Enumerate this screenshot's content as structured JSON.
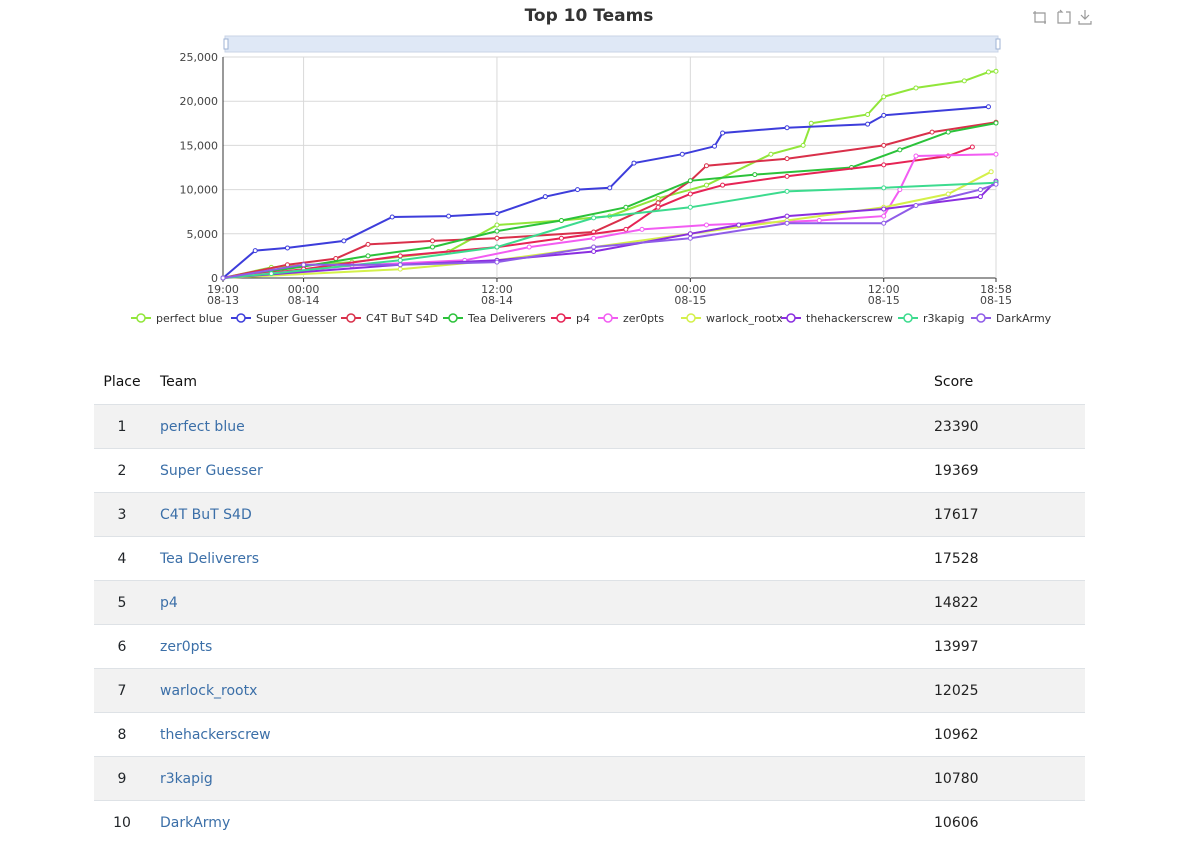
{
  "chart_data": {
    "type": "line",
    "title": "Top 10 Teams",
    "xlabel": "",
    "ylabel": "",
    "x_range": [
      "08-13 19:00",
      "08-15 18:58"
    ],
    "ylim": [
      0,
      25000
    ],
    "y_ticks": [
      "0",
      "5,000",
      "10,000",
      "15,000",
      "20,000",
      "25,000"
    ],
    "x_ticks": [
      {
        "at": "08-13 19:00",
        "time": "19:00",
        "date": "08-13"
      },
      {
        "at": "08-14 00:00",
        "time": "00:00",
        "date": "08-14"
      },
      {
        "at": "08-14 12:00",
        "time": "12:00",
        "date": "08-14"
      },
      {
        "at": "08-15 00:00",
        "time": "00:00",
        "date": "08-15"
      },
      {
        "at": "08-15 12:00",
        "time": "12:00",
        "date": "08-15"
      },
      {
        "at": "08-15 18:58",
        "time": "18:58",
        "date": "08-15"
      }
    ],
    "grid": true,
    "legend_position": "bottom",
    "series": [
      {
        "name": "perfect blue",
        "color": "#91e63a",
        "points": [
          [
            "08-13 19:00",
            0
          ],
          [
            "08-13 22:00",
            1200
          ],
          [
            "08-14 03:00",
            1800
          ],
          [
            "08-14 09:00",
            3000
          ],
          [
            "08-14 12:00",
            6000
          ],
          [
            "08-14 16:00",
            6500
          ],
          [
            "08-14 19:00",
            7000
          ],
          [
            "08-14 22:00",
            9000
          ],
          [
            "08-15 01:00",
            10500
          ],
          [
            "08-15 05:00",
            14000
          ],
          [
            "08-15 07:00",
            15000
          ],
          [
            "08-15 07:30",
            17500
          ],
          [
            "08-15 11:00",
            18500
          ],
          [
            "08-15 12:00",
            20500
          ],
          [
            "08-15 14:00",
            21500
          ],
          [
            "08-15 17:00",
            22300
          ],
          [
            "08-15 18:30",
            23300
          ],
          [
            "08-15 18:58",
            23390
          ]
        ]
      },
      {
        "name": "Super Guesser",
        "color": "#3d3ddb",
        "points": [
          [
            "08-13 19:00",
            0
          ],
          [
            "08-13 21:00",
            3100
          ],
          [
            "08-13 23:00",
            3400
          ],
          [
            "08-14 02:30",
            4200
          ],
          [
            "08-14 05:30",
            6900
          ],
          [
            "08-14 09:00",
            7000
          ],
          [
            "08-14 12:00",
            7300
          ],
          [
            "08-14 15:00",
            9200
          ],
          [
            "08-14 17:00",
            10000
          ],
          [
            "08-14 19:00",
            10200
          ],
          [
            "08-14 20:30",
            13000
          ],
          [
            "08-14 23:30",
            14000
          ],
          [
            "08-15 01:30",
            14900
          ],
          [
            "08-15 02:00",
            16400
          ],
          [
            "08-15 06:00",
            17000
          ],
          [
            "08-15 11:00",
            17400
          ],
          [
            "08-15 12:00",
            18400
          ],
          [
            "08-15 18:30",
            19369
          ]
        ]
      },
      {
        "name": "C4T BuT S4D",
        "color": "#d9304a",
        "points": [
          [
            "08-13 19:00",
            0
          ],
          [
            "08-13 23:00",
            1500
          ],
          [
            "08-14 02:00",
            2200
          ],
          [
            "08-14 04:00",
            3800
          ],
          [
            "08-14 08:00",
            4200
          ],
          [
            "08-14 12:00",
            4500
          ],
          [
            "08-14 18:00",
            5200
          ],
          [
            "08-14 22:00",
            8500
          ],
          [
            "08-15 00:00",
            11000
          ],
          [
            "08-15 01:00",
            12700
          ],
          [
            "08-15 06:00",
            13500
          ],
          [
            "08-15 12:00",
            15000
          ],
          [
            "08-15 15:00",
            16500
          ],
          [
            "08-15 18:58",
            17617
          ]
        ]
      },
      {
        "name": "Tea Deliverers",
        "color": "#2bc23a",
        "points": [
          [
            "08-13 19:00",
            0
          ],
          [
            "08-14 00:00",
            1300
          ],
          [
            "08-14 04:00",
            2500
          ],
          [
            "08-14 08:00",
            3500
          ],
          [
            "08-14 12:00",
            5300
          ],
          [
            "08-14 16:00",
            6500
          ],
          [
            "08-14 20:00",
            8000
          ],
          [
            "08-15 00:00",
            11000
          ],
          [
            "08-15 04:00",
            11700
          ],
          [
            "08-15 10:00",
            12500
          ],
          [
            "08-15 13:00",
            14500
          ],
          [
            "08-15 16:00",
            16500
          ],
          [
            "08-15 18:58",
            17528
          ]
        ]
      },
      {
        "name": "p4",
        "color": "#e62455",
        "points": [
          [
            "08-13 19:00",
            0
          ],
          [
            "08-14 00:00",
            1000
          ],
          [
            "08-14 06:00",
            2500
          ],
          [
            "08-14 12:00",
            3500
          ],
          [
            "08-14 16:00",
            4500
          ],
          [
            "08-14 20:00",
            5500
          ],
          [
            "08-14 22:00",
            8000
          ],
          [
            "08-15 00:00",
            9500
          ],
          [
            "08-15 02:00",
            10500
          ],
          [
            "08-15 06:00",
            11500
          ],
          [
            "08-15 12:00",
            12800
          ],
          [
            "08-15 16:00",
            13800
          ],
          [
            "08-15 17:30",
            14822
          ]
        ]
      },
      {
        "name": "zer0pts",
        "color": "#f25cf2",
        "points": [
          [
            "08-13 19:00",
            0
          ],
          [
            "08-14 03:00",
            1400
          ],
          [
            "08-14 10:00",
            2000
          ],
          [
            "08-14 14:00",
            3500
          ],
          [
            "08-14 18:00",
            4500
          ],
          [
            "08-14 21:00",
            5500
          ],
          [
            "08-15 01:00",
            6000
          ],
          [
            "08-15 08:00",
            6500
          ],
          [
            "08-15 12:00",
            7000
          ],
          [
            "08-15 13:00",
            10000
          ],
          [
            "08-15 14:00",
            13800
          ],
          [
            "08-15 18:58",
            13997
          ]
        ]
      },
      {
        "name": "warlock_rootx",
        "color": "#d4f04a",
        "points": [
          [
            "08-13 19:00",
            0
          ],
          [
            "08-14 06:00",
            1000
          ],
          [
            "08-14 12:00",
            2000
          ],
          [
            "08-14 18:00",
            3500
          ],
          [
            "08-15 00:00",
            5000
          ],
          [
            "08-15 06:00",
            6500
          ],
          [
            "08-15 12:00",
            8000
          ],
          [
            "08-15 16:00",
            9500
          ],
          [
            "08-15 18:40",
            12025
          ]
        ]
      },
      {
        "name": "thehackerscrew",
        "color": "#8a2ee0",
        "points": [
          [
            "08-13 19:00",
            0
          ],
          [
            "08-14 06:00",
            1500
          ],
          [
            "08-14 12:00",
            2000
          ],
          [
            "08-14 18:00",
            3000
          ],
          [
            "08-15 00:00",
            5000
          ],
          [
            "08-15 03:00",
            6000
          ],
          [
            "08-15 06:00",
            7000
          ],
          [
            "08-15 12:00",
            7800
          ],
          [
            "08-15 18:00",
            9200
          ],
          [
            "08-15 18:58",
            10962
          ]
        ]
      },
      {
        "name": "r3kapig",
        "color": "#3cdb8e",
        "points": [
          [
            "08-13 19:00",
            0
          ],
          [
            "08-13 22:00",
            500
          ],
          [
            "08-14 06:00",
            2000
          ],
          [
            "08-14 12:00",
            3500
          ],
          [
            "08-14 18:00",
            6800
          ],
          [
            "08-15 00:00",
            8000
          ],
          [
            "08-15 06:00",
            9800
          ],
          [
            "08-15 12:00",
            10200
          ],
          [
            "08-15 18:58",
            10780
          ]
        ]
      },
      {
        "name": "DarkArmy",
        "color": "#8f5ce8",
        "points": [
          [
            "08-13 19:00",
            0
          ],
          [
            "08-14 00:00",
            1500
          ],
          [
            "08-14 06:00",
            1500
          ],
          [
            "08-14 12:00",
            1800
          ],
          [
            "08-14 18:00",
            3500
          ],
          [
            "08-15 00:00",
            4500
          ],
          [
            "08-15 06:00",
            6200
          ],
          [
            "08-15 12:00",
            6200
          ],
          [
            "08-15 14:00",
            8200
          ],
          [
            "08-15 18:00",
            10000
          ],
          [
            "08-15 18:58",
            10606
          ]
        ]
      }
    ]
  },
  "toolbox": {
    "icons": [
      "zoom-icon",
      "zoom-reset-icon",
      "download-icon"
    ]
  },
  "scoreboard": {
    "headers": {
      "place": "Place",
      "team": "Team",
      "score": "Score"
    },
    "rows": [
      {
        "place": "1",
        "team": "perfect blue",
        "score": "23390"
      },
      {
        "place": "2",
        "team": "Super Guesser",
        "score": "19369"
      },
      {
        "place": "3",
        "team": "C4T BuT S4D",
        "score": "17617"
      },
      {
        "place": "4",
        "team": "Tea Deliverers",
        "score": "17528"
      },
      {
        "place": "5",
        "team": "p4",
        "score": "14822"
      },
      {
        "place": "6",
        "team": "zer0pts",
        "score": "13997"
      },
      {
        "place": "7",
        "team": "warlock_rootx",
        "score": "12025"
      },
      {
        "place": "8",
        "team": "thehackerscrew",
        "score": "10962"
      },
      {
        "place": "9",
        "team": "r3kapig",
        "score": "10780"
      },
      {
        "place": "10",
        "team": "DarkArmy",
        "score": "10606"
      }
    ]
  }
}
